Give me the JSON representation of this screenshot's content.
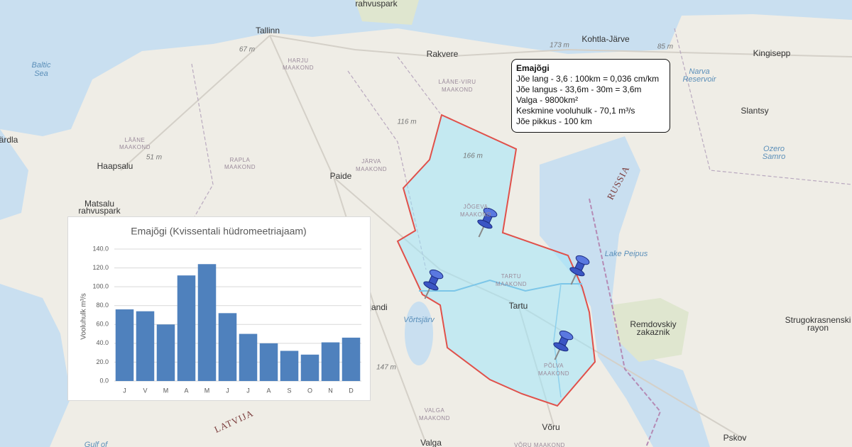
{
  "map": {
    "labels": [
      "Tallinn",
      "67 m",
      "Baltic",
      "Sea",
      "HARJU",
      "MAAKOND",
      "Rakvere",
      "LÄÄNE-VIRU",
      "MAAKOND",
      "Kohtla-Järve",
      "173 m",
      "85 m",
      "Kingisepp",
      "Narva",
      "Reservoir",
      "Slantsy",
      "Ozero",
      "Samro",
      "116 m",
      "LÄÄNE",
      "MAAKOND",
      "51 m",
      "Haapsalu",
      "RAPLA",
      "MAAKOND",
      "JÄRVA",
      "MAAKOND",
      "Paide",
      "166 m",
      "Matsalu",
      "rahvuspark",
      "JÕGEVA",
      "MAAKOND",
      "RUSSIA",
      "Lake Peipus",
      "TARTU",
      "MAAKOND",
      "Tartu",
      "Remdovskiy",
      "zakaznik",
      "Strugokrasnenski",
      "rayon",
      "Võrtsjärv",
      "jandi",
      "147 m",
      "PÕLVA",
      "MAAKOND",
      "VALGA",
      "MAAKOND",
      "Võru",
      "LATVIJA",
      "Valga",
      "VÕRU MAAKOND",
      "Pskov",
      "Gulf of",
      "rahvuspark",
      "ärdla"
    ]
  },
  "popup": {
    "title": "Emajõgi",
    "lines": [
      "Jõe lang - 3,6 : 100km = 0,036 cm/km",
      "Jõe langus - 33,6m - 30m = 3,6m",
      "Valga - 9800km²",
      "Keskmine vooluhulk - 70,1 m³/s",
      "Jõe pikkus - 100 km"
    ]
  },
  "chart_data": {
    "type": "bar",
    "title": "Emajõgi (Kvissentali hüdromeetriajaam)",
    "y_label": "Vooluhulk m³/s",
    "categories": [
      "J",
      "V",
      "M",
      "A",
      "M",
      "J",
      "J",
      "A",
      "S",
      "O",
      "N",
      "D"
    ],
    "values": [
      76,
      74,
      60,
      112,
      124,
      72,
      50,
      40,
      32,
      28,
      41,
      46
    ],
    "color": "#4f81bd",
    "ylim": [
      0,
      140
    ],
    "yticks": [
      {
        "value": 0,
        "label": "0.0"
      },
      {
        "value": 20,
        "label": "20.0"
      },
      {
        "value": 40,
        "label": "40.0"
      },
      {
        "value": 60,
        "label": "60.0"
      },
      {
        "value": 80,
        "label": "80.0"
      },
      {
        "value": 100,
        "label": "100.0"
      },
      {
        "value": 120,
        "label": "120.0"
      },
      {
        "value": 140,
        "label": "140.0"
      }
    ],
    "grid": true
  }
}
